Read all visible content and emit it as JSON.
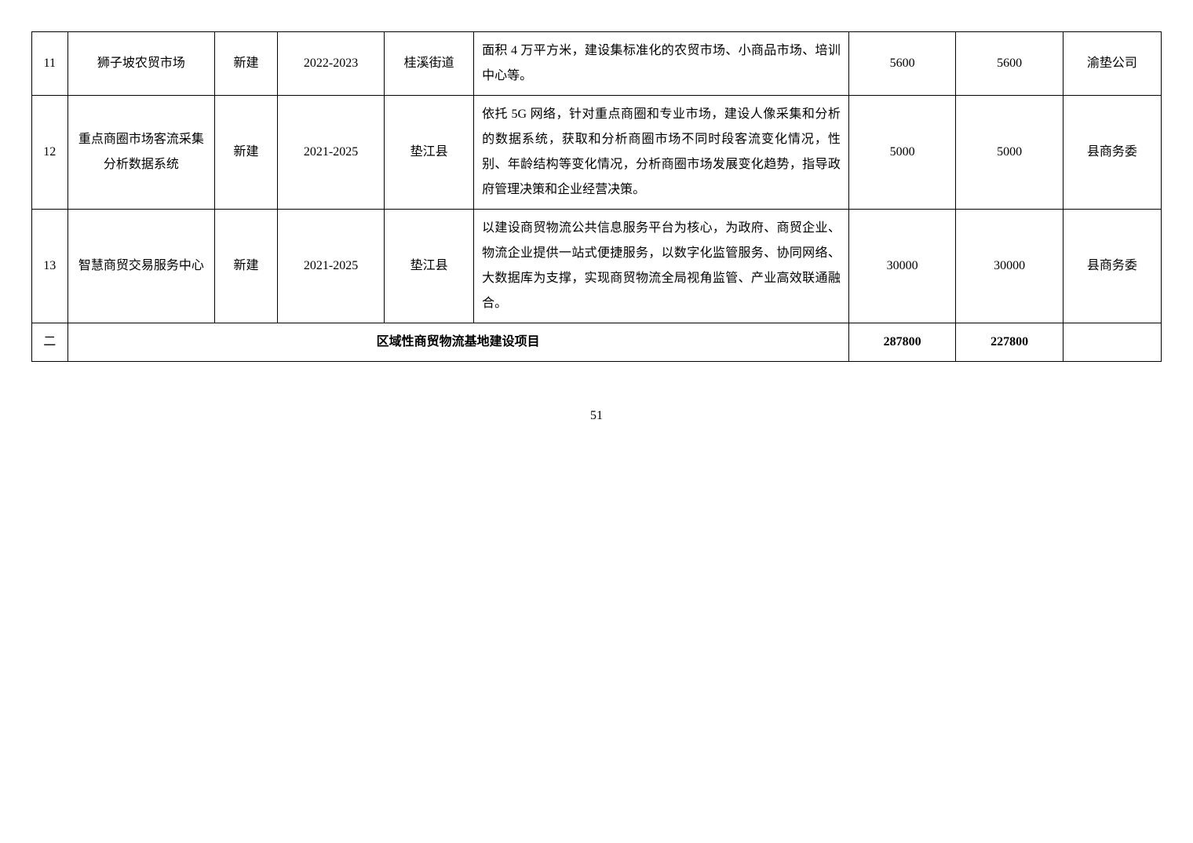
{
  "rows": [
    {
      "idx": "11",
      "name": "狮子坡农贸市场",
      "type": "新建",
      "period": "2022-2023",
      "location": "桂溪街道",
      "desc": "面积 4 万平方米，建设集标准化的农贸市场、小商品市场、培训中心等。",
      "num1": "5600",
      "num2": "5600",
      "owner": "渝垫公司"
    },
    {
      "idx": "12",
      "name": "重点商圈市场客流采集分析数据系统",
      "type": "新建",
      "period": "2021-2025",
      "location": "垫江县",
      "desc": "依托 5G 网络，针对重点商圈和专业市场，建设人像采集和分析的数据系统，获取和分析商圈市场不同时段客流变化情况，性别、年龄结构等变化情况，分析商圈市场发展变化趋势，指导政府管理决策和企业经营决策。",
      "num1": "5000",
      "num2": "5000",
      "owner": "县商务委"
    },
    {
      "idx": "13",
      "name": "智慧商贸交易服务中心",
      "type": "新建",
      "period": "2021-2025",
      "location": "垫江县",
      "desc": "以建设商贸物流公共信息服务平台为核心，为政府、商贸企业、物流企业提供一站式便捷服务，以数字化监管服务、协同网络、大数据库为支撑，实现商贸物流全局视角监管、产业高效联通融合。",
      "num1": "30000",
      "num2": "30000",
      "owner": "县商务委"
    }
  ],
  "section": {
    "idx": "二",
    "title": "区域性商贸物流基地建设项目",
    "num1": "287800",
    "num2": "227800"
  },
  "pageNumber": "51"
}
